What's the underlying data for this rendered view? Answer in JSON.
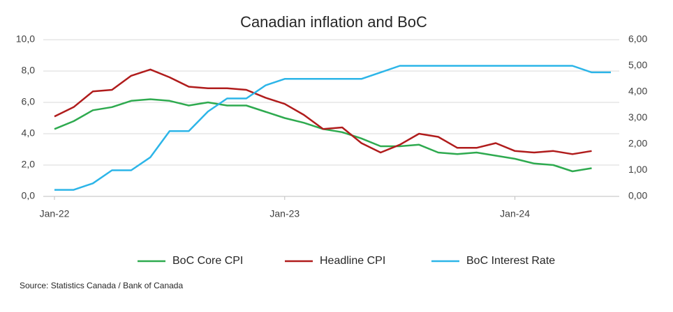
{
  "chart_data": {
    "type": "line",
    "title": "Canadian inflation and BoC",
    "source": "Source: Statistics Canada / Bank of Canada",
    "categories": [
      "Jan-22",
      null,
      null,
      null,
      null,
      null,
      null,
      null,
      null,
      null,
      null,
      null,
      "Jan-23",
      null,
      null,
      null,
      null,
      null,
      null,
      null,
      null,
      null,
      null,
      null,
      "Jan-24",
      null,
      null,
      null,
      null,
      null
    ],
    "series": [
      {
        "name": "BoC Core CPI",
        "color": "#2eaa4f",
        "values": [
          4.3,
          4.8,
          5.5,
          5.7,
          6.1,
          6.2,
          6.1,
          5.8,
          6.0,
          5.8,
          5.8,
          5.4,
          5.0,
          4.7,
          4.3,
          4.1,
          3.7,
          3.2,
          3.2,
          3.3,
          2.8,
          2.7,
          2.8,
          2.6,
          2.4,
          2.1,
          2.0,
          1.6,
          1.8,
          null
        ]
      },
      {
        "name": "Headline CPI",
        "color": "#b01c1c",
        "values": [
          5.1,
          5.7,
          6.7,
          6.8,
          7.7,
          8.1,
          7.6,
          7.0,
          6.9,
          6.9,
          6.8,
          6.3,
          5.9,
          5.2,
          4.3,
          4.4,
          3.4,
          2.8,
          3.3,
          4.0,
          3.8,
          3.1,
          3.1,
          3.4,
          2.9,
          2.8,
          2.9,
          2.7,
          2.9,
          null
        ]
      },
      {
        "name": "BoC Interest Rate",
        "color": "#2cb5e8",
        "axis": "y2",
        "values": [
          0.25,
          0.25,
          0.5,
          1.0,
          1.0,
          1.5,
          2.5,
          2.5,
          3.25,
          3.75,
          3.75,
          4.25,
          4.5,
          4.5,
          4.5,
          4.5,
          4.5,
          4.75,
          5.0,
          5.0,
          5.0,
          5.0,
          5.0,
          5.0,
          5.0,
          5.0,
          5.0,
          5.0,
          4.75,
          4.75
        ]
      }
    ],
    "ylim": [
      0,
      10
    ],
    "yticks": [
      {
        "value": 0,
        "label": "0,0"
      },
      {
        "value": 2,
        "label": "2,0"
      },
      {
        "value": 4,
        "label": "4,0"
      },
      {
        "value": 6,
        "label": "6,0"
      },
      {
        "value": 8,
        "label": "8,0"
      },
      {
        "value": 10,
        "label": "10,0"
      }
    ],
    "y2lim": [
      0,
      6
    ],
    "y2ticks": [
      {
        "value": 0,
        "label": "0,00"
      },
      {
        "value": 1,
        "label": "1,00"
      },
      {
        "value": 2,
        "label": "2,00"
      },
      {
        "value": 3,
        "label": "3,00"
      },
      {
        "value": 4,
        "label": "4,00"
      },
      {
        "value": 5,
        "label": "5,00"
      },
      {
        "value": 6,
        "label": "6,00"
      }
    ],
    "grid": true
  }
}
